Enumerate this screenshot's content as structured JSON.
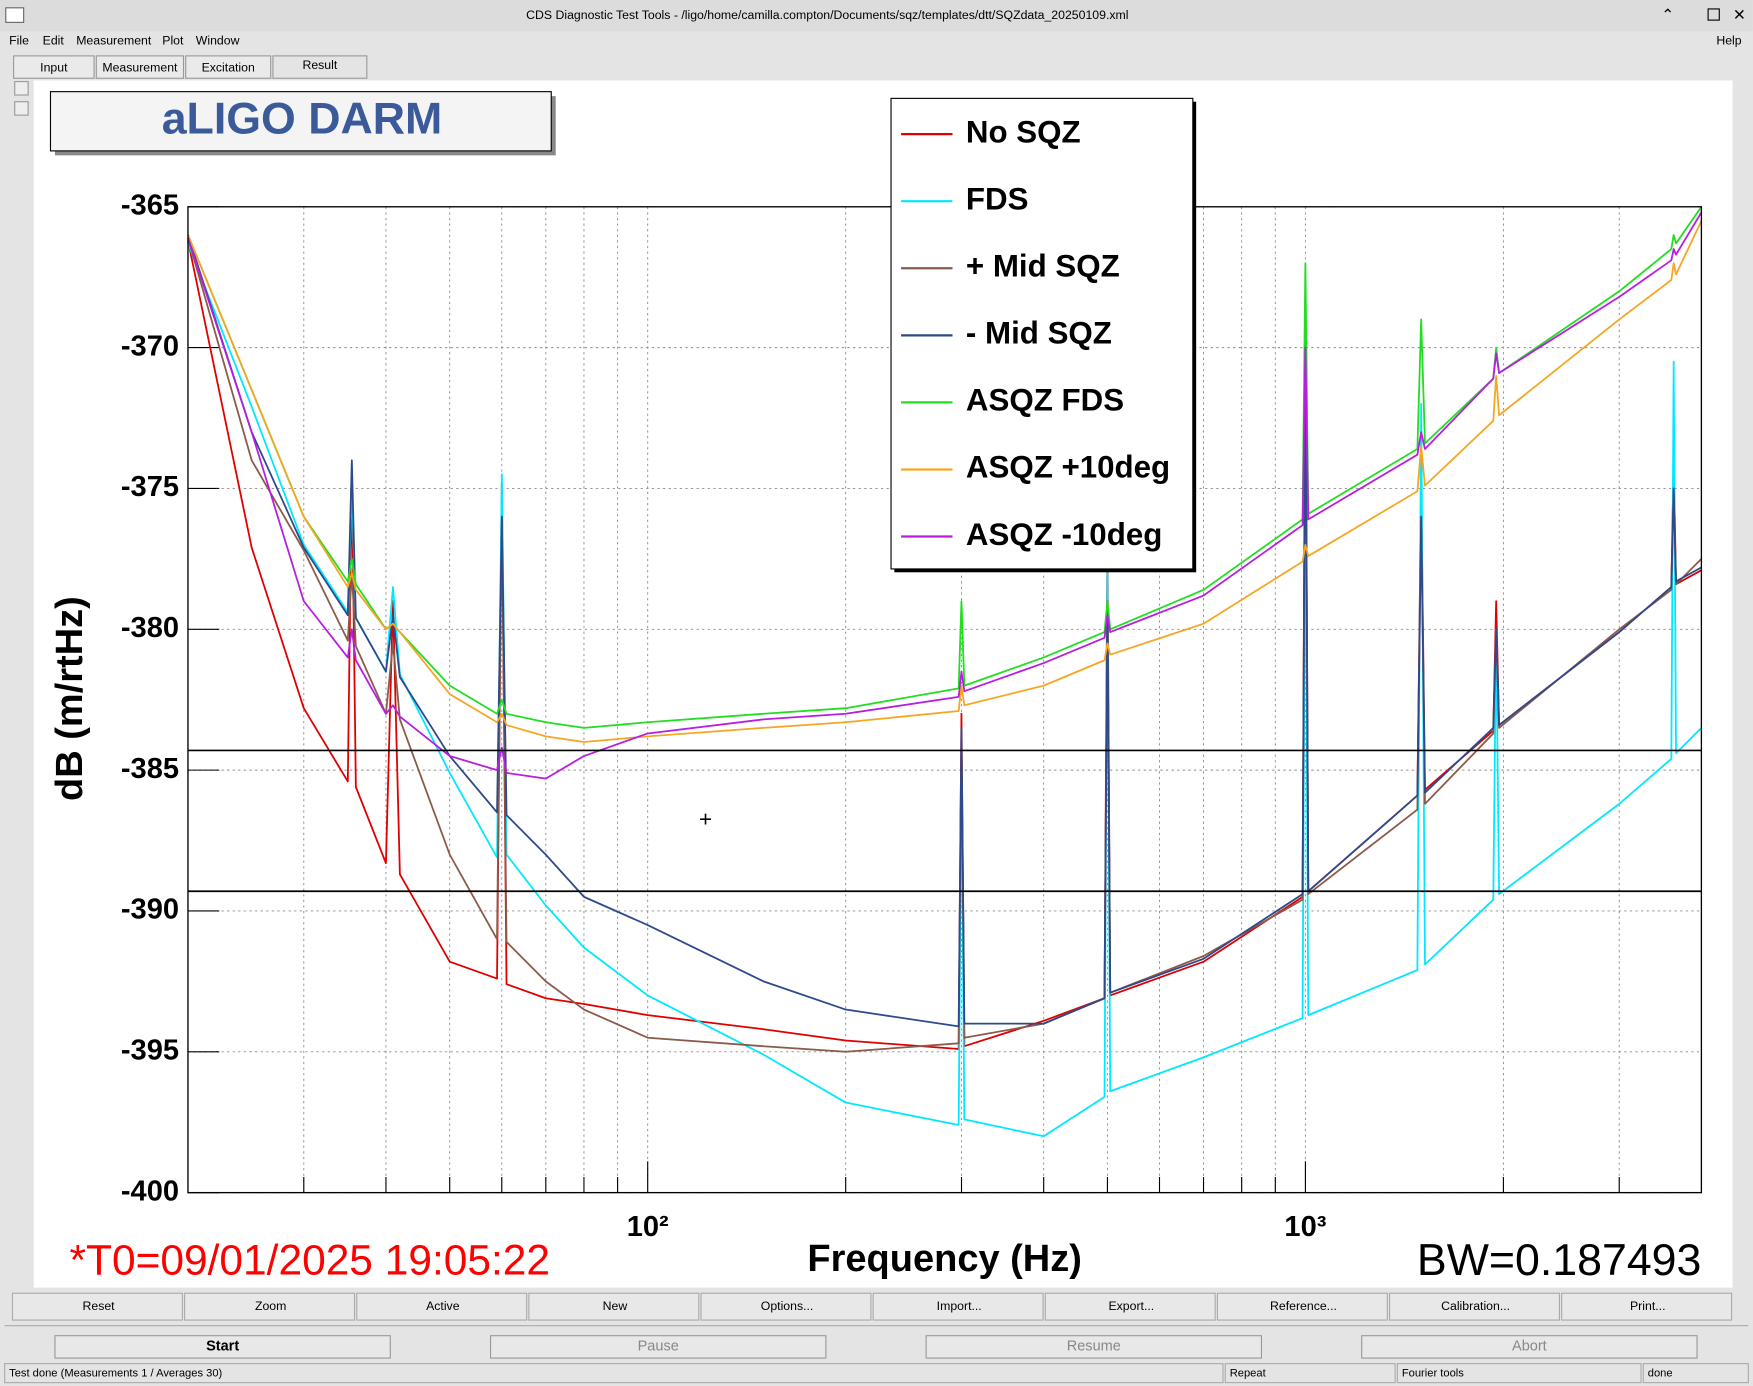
{
  "window": {
    "title": "CDS Diagnostic Test Tools - /ligo/home/camilla.compton/Documents/sqz/templates/dtt/SQZdata_20250109.xml",
    "menu": [
      "File",
      "Edit",
      "Measurement",
      "Plot",
      "Window"
    ],
    "help": "Help",
    "tabs": [
      "Input",
      "Measurement",
      "Excitation",
      "Result"
    ]
  },
  "chart_data": {
    "type": "line",
    "title": "aLIGO DARM",
    "xlabel": "Frequency (Hz)",
    "ylabel": "dB (m/rtHz)",
    "annotations": [
      "*T0=09/01/2025 19:05:22",
      "BW=0.187493"
    ],
    "xscale": "log",
    "xlim": [
      20,
      4000
    ],
    "ylim": [
      -400,
      -365
    ],
    "xticks": [
      {
        "value": 100,
        "label": "10²"
      },
      {
        "value": 1000,
        "label": "10³"
      }
    ],
    "xminor": [
      30,
      40,
      50,
      60,
      70,
      80,
      90,
      200,
      300,
      400,
      500,
      600,
      700,
      800,
      900,
      2000,
      3000
    ],
    "yticks": [
      -365,
      -370,
      -375,
      -380,
      -385,
      -390,
      -395,
      -400
    ],
    "hlines": [
      -384.3,
      -389.3
    ],
    "grid": true,
    "legend": "upper center",
    "x": [
      20,
      25,
      30,
      35,
      35.5,
      36,
      40,
      41,
      42,
      50,
      59,
      60,
      61,
      70,
      80,
      100,
      150,
      200,
      297,
      300,
      303,
      400,
      495,
      500,
      505,
      700,
      990,
      1000,
      1010,
      1480,
      1500,
      1520,
      1930,
      1950,
      1970,
      3000,
      3600,
      3630,
      3660,
      4000
    ],
    "series": [
      {
        "name": "No SQZ",
        "color": "#e00000",
        "values": [
          -366.2,
          -377.1,
          -382.8,
          -385.4,
          -374.5,
          -385.6,
          -388.3,
          -379.0,
          -388.7,
          -391.8,
          -392.4,
          -374.8,
          -392.6,
          -393.1,
          -393.3,
          -393.7,
          -394.2,
          -394.6,
          -394.9,
          -383.0,
          -394.8,
          -393.9,
          -393.1,
          -377.0,
          -393.0,
          -391.8,
          -389.5,
          -369.0,
          -389.3,
          -385.9,
          -375.0,
          -385.7,
          -383.6,
          -379.0,
          -383.4,
          -380.1,
          -378.5,
          -374.0,
          -378.4,
          -377.9
        ]
      },
      {
        "name": "FDS",
        "color": "#00e8ff",
        "values": [
          -366.3,
          -372.1,
          -377.0,
          -379.4,
          -375.0,
          -379.6,
          -381.5,
          -378.5,
          -381.6,
          -385.1,
          -388.1,
          -374.5,
          -388.0,
          -389.8,
          -391.3,
          -393.0,
          -395.1,
          -396.8,
          -397.6,
          -385.0,
          -397.4,
          -398.0,
          -396.6,
          -378.0,
          -396.4,
          -395.2,
          -393.8,
          -374.0,
          -393.7,
          -392.1,
          -372.0,
          -391.9,
          -389.6,
          -380.0,
          -389.4,
          -386.2,
          -384.6,
          -370.5,
          -384.4,
          -383.5
        ]
      },
      {
        "name": "+ Mid SQZ",
        "color": "#8b5a4a",
        "values": [
          -366.1,
          -374.0,
          -377.2,
          -380.4,
          -378.0,
          -380.6,
          -383.0,
          -380.5,
          -383.2,
          -388.0,
          -391.0,
          -376.0,
          -391.1,
          -392.5,
          -393.5,
          -394.5,
          -394.8,
          -395.0,
          -394.7,
          -384.0,
          -394.5,
          -394.0,
          -393.1,
          -379.0,
          -392.9,
          -391.6,
          -389.6,
          -370.0,
          -389.4,
          -386.4,
          -376.0,
          -386.2,
          -383.7,
          -380.0,
          -383.5,
          -380.0,
          -378.6,
          -375.0,
          -378.4,
          -377.5
        ]
      },
      {
        "name": "- Mid SQZ",
        "color": "#2e4a8a",
        "values": [
          -366.0,
          -373.0,
          -377.1,
          -379.5,
          -374.0,
          -379.6,
          -381.5,
          -379.5,
          -381.7,
          -384.5,
          -386.5,
          -376.0,
          -386.6,
          -388.0,
          -389.5,
          -390.5,
          -392.5,
          -393.5,
          -394.1,
          -383.5,
          -394.0,
          -394.0,
          -393.1,
          -379.0,
          -392.9,
          -391.7,
          -389.4,
          -370.0,
          -389.3,
          -385.9,
          -376.0,
          -385.8,
          -383.5,
          -380.0,
          -383.4,
          -380.1,
          -378.5,
          -375.0,
          -378.3,
          -377.8
        ]
      },
      {
        "name": "ASQZ FDS",
        "color": "#22dd22",
        "values": [
          -366.0,
          -371.5,
          -376.0,
          -378.3,
          -377.5,
          -378.4,
          -380.0,
          -379.8,
          -380.1,
          -382.0,
          -383.0,
          -382.5,
          -383.0,
          -383.3,
          -383.5,
          -383.3,
          -383.0,
          -382.8,
          -382.1,
          -379.0,
          -382.0,
          -381.0,
          -380.1,
          -379.0,
          -380.0,
          -378.6,
          -376.1,
          -367.0,
          -375.9,
          -373.6,
          -369.0,
          -373.4,
          -371.1,
          -370.0,
          -370.9,
          -368.0,
          -366.5,
          -366.0,
          -366.3,
          -365.0
        ]
      },
      {
        "name": "ASQZ +10deg",
        "color": "#f5a623",
        "values": [
          -366.0,
          -371.5,
          -376.0,
          -378.5,
          -378.0,
          -378.6,
          -380.0,
          -379.8,
          -380.1,
          -382.3,
          -383.3,
          -383.0,
          -383.4,
          -383.8,
          -384.0,
          -383.8,
          -383.5,
          -383.3,
          -382.9,
          -382.0,
          -382.7,
          -382.0,
          -381.1,
          -380.5,
          -380.9,
          -379.8,
          -377.6,
          -377.0,
          -377.4,
          -375.1,
          -373.5,
          -374.9,
          -372.6,
          -371.0,
          -372.4,
          -369.0,
          -367.6,
          -367.0,
          -367.4,
          -365.5
        ]
      },
      {
        "name": "ASQZ -10deg",
        "color": "#b71ee0",
        "values": [
          -366.1,
          -373.0,
          -379.0,
          -381.0,
          -380.0,
          -381.1,
          -383.0,
          -382.7,
          -383.1,
          -384.5,
          -385.0,
          -384.2,
          -385.1,
          -385.3,
          -384.5,
          -383.7,
          -383.2,
          -383.0,
          -382.4,
          -381.5,
          -382.2,
          -381.2,
          -380.3,
          -379.5,
          -380.1,
          -378.8,
          -376.3,
          -370.0,
          -376.1,
          -373.8,
          -373.0,
          -373.6,
          -371.1,
          -370.2,
          -370.9,
          -368.2,
          -366.9,
          -366.5,
          -366.7,
          -365.2
        ]
      }
    ]
  },
  "buttons": [
    "Reset",
    "Zoom",
    "Active",
    "New",
    "Options...",
    "Import...",
    "Export...",
    "Reference...",
    "Calibration...",
    "Print..."
  ],
  "controls": [
    "Start",
    "Pause",
    "Resume",
    "Abort"
  ],
  "status": [
    "Test done (Measurements 1 / Averages 30)",
    "Repeat",
    "Fourier tools",
    "done"
  ]
}
